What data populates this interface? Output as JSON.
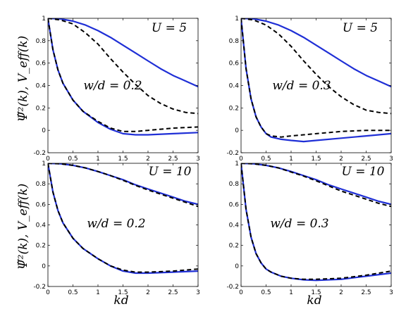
{
  "figure": {
    "ylabel": "Ψ̃²(k), V_eff(k)",
    "xlabel": "kd"
  },
  "chart_data": [
    {
      "type": "line",
      "panel": "top-left",
      "annotations": [
        "U = 5",
        "w/d = 0.2"
      ],
      "xlim": [
        0,
        3
      ],
      "ylim": [
        -0.2,
        1
      ],
      "xticks": [
        "0",
        "0.5",
        "1",
        "1.5",
        "2",
        "2.5",
        "3"
      ],
      "yticks": [
        "-0.2",
        "0",
        "0.2",
        "0.4",
        "0.6",
        "0.8",
        "1"
      ],
      "grid": false,
      "series": [
        {
          "style": "solid",
          "color": "#1f2fd6",
          "x": [
            0,
            0.25,
            0.5,
            0.75,
            1,
            1.25,
            1.5,
            1.75,
            2,
            2.25,
            2.5,
            2.75,
            3
          ],
          "y": [
            1,
            0.995,
            0.975,
            0.94,
            0.89,
            0.83,
            0.76,
            0.69,
            0.62,
            0.55,
            0.49,
            0.44,
            0.39
          ]
        },
        {
          "style": "dashed",
          "color": "#000000",
          "x": [
            0,
            0.25,
            0.5,
            0.75,
            1,
            1.25,
            1.5,
            1.75,
            2,
            2.25,
            2.5,
            2.75,
            3
          ],
          "y": [
            1,
            0.985,
            0.95,
            0.87,
            0.77,
            0.64,
            0.52,
            0.41,
            0.31,
            0.24,
            0.19,
            0.16,
            0.15
          ]
        },
        {
          "style": "solid",
          "color": "#1f2fd6",
          "x": [
            0,
            0.1,
            0.2,
            0.3,
            0.5,
            0.7,
            1,
            1.25,
            1.5,
            1.75,
            2,
            2.5,
            3
          ],
          "y": [
            1,
            0.72,
            0.54,
            0.42,
            0.27,
            0.17,
            0.07,
            0.01,
            -0.03,
            -0.04,
            -0.04,
            -0.03,
            -0.02
          ]
        },
        {
          "style": "dashed",
          "color": "#000000",
          "x": [
            0,
            0.1,
            0.2,
            0.3,
            0.5,
            0.7,
            1,
            1.25,
            1.5,
            1.75,
            2,
            2.5,
            3
          ],
          "y": [
            1,
            0.72,
            0.54,
            0.42,
            0.27,
            0.17,
            0.08,
            0.02,
            -0.01,
            -0.01,
            0.0,
            0.02,
            0.03
          ]
        }
      ]
    },
    {
      "type": "line",
      "panel": "top-right",
      "annotations": [
        "U = 5",
        "w/d = 0.3"
      ],
      "xlim": [
        0,
        3
      ],
      "ylim": [
        -0.2,
        1
      ],
      "xticks": [
        "0",
        "0.5",
        "1",
        "1.5",
        "2",
        "2.5",
        "3"
      ],
      "yticks": [
        "-0.2",
        "0",
        "0.2",
        "0.4",
        "0.6",
        "0.8",
        "1"
      ],
      "grid": false,
      "series": [
        {
          "style": "solid",
          "color": "#1f2fd6",
          "x": [
            0,
            0.25,
            0.5,
            0.75,
            1,
            1.25,
            1.5,
            1.75,
            2,
            2.25,
            2.5,
            2.75,
            3
          ],
          "y": [
            1,
            0.995,
            0.975,
            0.94,
            0.89,
            0.83,
            0.76,
            0.69,
            0.62,
            0.55,
            0.49,
            0.44,
            0.39
          ]
        },
        {
          "style": "dashed",
          "color": "#000000",
          "x": [
            0,
            0.25,
            0.5,
            0.75,
            1,
            1.25,
            1.5,
            1.75,
            2,
            2.25,
            2.5,
            2.75,
            3
          ],
          "y": [
            1,
            0.985,
            0.94,
            0.86,
            0.75,
            0.62,
            0.5,
            0.39,
            0.3,
            0.23,
            0.18,
            0.16,
            0.15
          ]
        },
        {
          "style": "solid",
          "color": "#1f2fd6",
          "x": [
            0,
            0.1,
            0.2,
            0.3,
            0.4,
            0.5,
            0.6,
            0.8,
            1,
            1.25,
            1.5,
            2,
            2.5,
            3
          ],
          "y": [
            1,
            0.55,
            0.28,
            0.12,
            0.03,
            -0.03,
            -0.06,
            -0.08,
            -0.09,
            -0.1,
            -0.09,
            -0.07,
            -0.05,
            -0.03
          ]
        },
        {
          "style": "dashed",
          "color": "#000000",
          "x": [
            0,
            0.1,
            0.2,
            0.3,
            0.4,
            0.5,
            0.6,
            0.8,
            1,
            1.25,
            1.5,
            2,
            2.5,
            3
          ],
          "y": [
            1,
            0.55,
            0.28,
            0.12,
            0.03,
            -0.03,
            -0.05,
            -0.06,
            -0.05,
            -0.04,
            -0.03,
            -0.01,
            0.0,
            0.0
          ]
        }
      ]
    },
    {
      "type": "line",
      "panel": "bottom-left",
      "annotations": [
        "U = 10",
        "w/d = 0.2"
      ],
      "xlim": [
        0,
        3
      ],
      "ylim": [
        -0.2,
        1
      ],
      "xticks": [
        "0",
        "0.5",
        "1",
        "1.5",
        "2",
        "2.5",
        "3"
      ],
      "yticks": [
        "-0.2",
        "0",
        "0.2",
        "0.4",
        "0.6",
        "0.8",
        "1"
      ],
      "grid": false,
      "series": [
        {
          "style": "solid",
          "color": "#1f2fd6",
          "x": [
            0,
            0.25,
            0.5,
            0.75,
            1,
            1.25,
            1.5,
            1.75,
            2,
            2.25,
            2.5,
            2.75,
            3
          ],
          "y": [
            1,
            0.995,
            0.98,
            0.955,
            0.92,
            0.88,
            0.84,
            0.79,
            0.75,
            0.71,
            0.67,
            0.63,
            0.6
          ]
        },
        {
          "style": "dashed",
          "color": "#000000",
          "x": [
            0,
            0.25,
            0.5,
            0.75,
            1,
            1.25,
            1.5,
            1.75,
            2,
            2.25,
            2.5,
            2.75,
            3
          ],
          "y": [
            1,
            0.995,
            0.98,
            0.955,
            0.92,
            0.88,
            0.835,
            0.785,
            0.74,
            0.7,
            0.66,
            0.62,
            0.58
          ]
        },
        {
          "style": "solid",
          "color": "#1f2fd6",
          "x": [
            0,
            0.1,
            0.2,
            0.3,
            0.5,
            0.7,
            1,
            1.25,
            1.5,
            1.75,
            2,
            2.5,
            3
          ],
          "y": [
            1,
            0.72,
            0.54,
            0.42,
            0.27,
            0.17,
            0.07,
            0.0,
            -0.05,
            -0.07,
            -0.07,
            -0.06,
            -0.05
          ]
        },
        {
          "style": "dashed",
          "color": "#000000",
          "x": [
            0,
            0.1,
            0.2,
            0.3,
            0.5,
            0.7,
            1,
            1.25,
            1.5,
            1.75,
            2,
            2.5,
            3
          ],
          "y": [
            1,
            0.72,
            0.54,
            0.42,
            0.27,
            0.17,
            0.07,
            0.0,
            -0.04,
            -0.06,
            -0.06,
            -0.05,
            -0.03
          ]
        }
      ]
    },
    {
      "type": "line",
      "panel": "bottom-right",
      "annotations": [
        "U = 10",
        "w/d = 0.3"
      ],
      "xlim": [
        0,
        3
      ],
      "ylim": [
        -0.2,
        1
      ],
      "xticks": [
        "0",
        "0.5",
        "1",
        "1.5",
        "2",
        "2.5",
        "3"
      ],
      "yticks": [
        "-0.2",
        "0",
        "0.2",
        "0.4",
        "0.6",
        "0.8",
        "1"
      ],
      "grid": false,
      "series": [
        {
          "style": "solid",
          "color": "#1f2fd6",
          "x": [
            0,
            0.25,
            0.5,
            0.75,
            1,
            1.25,
            1.5,
            1.75,
            2,
            2.25,
            2.5,
            2.75,
            3
          ],
          "y": [
            1,
            0.995,
            0.98,
            0.955,
            0.92,
            0.88,
            0.84,
            0.79,
            0.75,
            0.71,
            0.67,
            0.63,
            0.6
          ]
        },
        {
          "style": "dashed",
          "color": "#000000",
          "x": [
            0,
            0.25,
            0.5,
            0.75,
            1,
            1.25,
            1.5,
            1.75,
            2,
            2.25,
            2.5,
            2.75,
            3
          ],
          "y": [
            1,
            0.995,
            0.98,
            0.955,
            0.915,
            0.875,
            0.83,
            0.78,
            0.73,
            0.69,
            0.65,
            0.61,
            0.58
          ]
        },
        {
          "style": "solid",
          "color": "#1f2fd6",
          "x": [
            0,
            0.1,
            0.2,
            0.3,
            0.4,
            0.5,
            0.6,
            0.8,
            1,
            1.25,
            1.5,
            2,
            2.5,
            3
          ],
          "y": [
            1,
            0.55,
            0.28,
            0.12,
            0.03,
            -0.03,
            -0.06,
            -0.1,
            -0.12,
            -0.135,
            -0.14,
            -0.13,
            -0.1,
            -0.07
          ]
        },
        {
          "style": "dashed",
          "color": "#000000",
          "x": [
            0,
            0.1,
            0.2,
            0.3,
            0.4,
            0.5,
            0.6,
            0.8,
            1,
            1.25,
            1.5,
            2,
            2.5,
            3
          ],
          "y": [
            1,
            0.55,
            0.28,
            0.12,
            0.03,
            -0.03,
            -0.06,
            -0.1,
            -0.12,
            -0.13,
            -0.13,
            -0.12,
            -0.09,
            -0.05
          ]
        }
      ]
    }
  ]
}
